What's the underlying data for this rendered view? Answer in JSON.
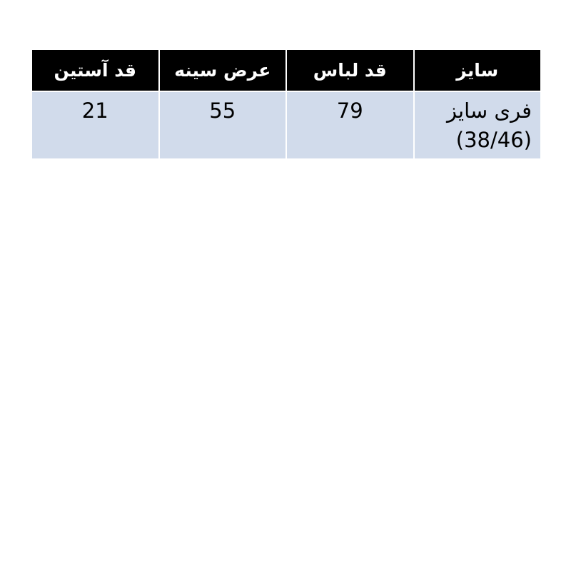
{
  "page": {
    "background": "#ffffff"
  },
  "table": {
    "direction": "rtl",
    "colors": {
      "header_bg": "#000000",
      "header_text": "#ffffff",
      "row_bg": "#d1dbeb",
      "row_text": "#000000",
      "grid": "#ffffff"
    },
    "columns": [
      {
        "key": "size",
        "label": "سایز"
      },
      {
        "key": "garment-length",
        "label": "قد لباس"
      },
      {
        "key": "chest-width",
        "label": "عرض سینه"
      },
      {
        "key": "sleeve-length",
        "label": "قد آستین"
      }
    ],
    "rows": [
      {
        "size_line1": "فری سایز",
        "size_line2": "(38/46)",
        "garment_length": "79",
        "chest_width": "55",
        "sleeve_length": "21"
      }
    ]
  },
  "chart_data": {
    "type": "table",
    "direction": "rtl",
    "columns": [
      "سایز",
      "قد لباس",
      "عرض سینه",
      "قد آستین"
    ],
    "rows": [
      [
        "فری سایز (38/46)",
        "79",
        "55",
        "21"
      ]
    ]
  }
}
